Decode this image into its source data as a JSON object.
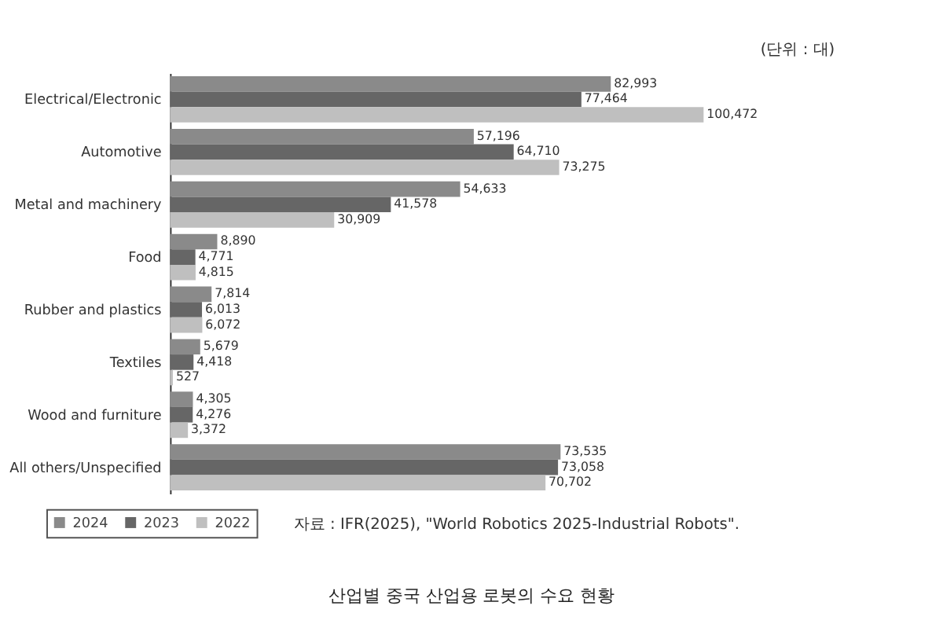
{
  "chart_data": {
    "type": "bar",
    "orientation": "horizontal",
    "title": "산업별 중국 산업용 로봇의 수요 현황",
    "categories": [
      "Electrical/Electronic",
      "Automotive",
      "Metal and machinery",
      "Food",
      "Rubber and plastics",
      "Textiles",
      "Wood and furniture",
      "All others/Unspecified"
    ],
    "series": [
      {
        "name": "2024",
        "color": "#8a8a8a",
        "values": [
          82993,
          57196,
          54633,
          8890,
          7814,
          5679,
          4305,
          73535
        ],
        "value_labels": [
          "82,993",
          "57,196",
          "54,633",
          "8,890",
          "7,814",
          "5,679",
          "4,305",
          "73,535"
        ]
      },
      {
        "name": "2023",
        "color": "#666666",
        "values": [
          77464,
          64710,
          41578,
          4771,
          6013,
          4418,
          4276,
          73058
        ],
        "value_labels": [
          "77,464",
          "64,710",
          "41,578",
          "4,771",
          "6,013",
          "4,418",
          "4,276",
          "73,058"
        ]
      },
      {
        "name": "2022",
        "color": "#bfbfbf",
        "values": [
          100472,
          73275,
          30909,
          4815,
          6072,
          527,
          3372,
          70702
        ],
        "value_labels": [
          "100,472",
          "73,275",
          "30,909",
          "4,815",
          "6,072",
          "527",
          "3,372",
          "70,702"
        ]
      }
    ],
    "legend": "bottom",
    "annotations": [
      "(단위 : 대)",
      "자료 : IFR(2025), \"World Robotics 2025-Industrial Robots\"."
    ]
  }
}
